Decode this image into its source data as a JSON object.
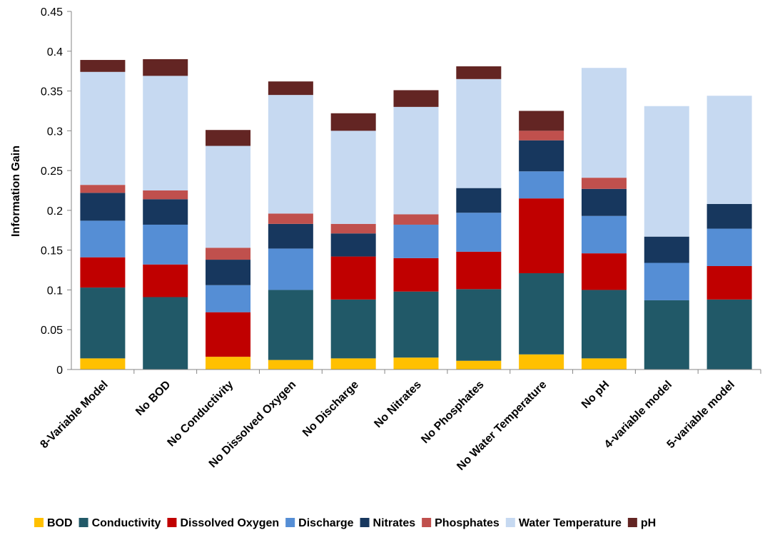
{
  "chart_data": {
    "type": "bar",
    "stacked": true,
    "ylabel": "Information Gain",
    "xlabel": "",
    "ylim": [
      0,
      0.45
    ],
    "yticks": [
      "0",
      "0.05",
      "0.1",
      "0.15",
      "0.2",
      "0.25",
      "0.3",
      "0.35",
      "0.4",
      "0.45"
    ],
    "grid": false,
    "legend_position": "bottom",
    "categories": [
      "8-Variable Model",
      "No BOD",
      "No Conductivity",
      "No Dissolved Oxygen",
      "No Discharge",
      "No Nitrates",
      "No Phosphates",
      "No Water Temperature",
      "No pH",
      "4-variable model",
      "5-variable model"
    ],
    "series": [
      {
        "name": "BOD",
        "color": "#FFC000",
        "values": [
          0.014,
          0,
          0.016,
          0.012,
          0.014,
          0.015,
          0.011,
          0.019,
          0.014,
          0,
          0
        ]
      },
      {
        "name": "Conductivity",
        "color": "#215968",
        "values": [
          0.089,
          0.091,
          0,
          0.088,
          0.074,
          0.083,
          0.09,
          0.102,
          0.086,
          0.087,
          0.088
        ]
      },
      {
        "name": "Dissolved Oxygen",
        "color": "#C00000",
        "values": [
          0.038,
          0.041,
          0.056,
          0,
          0.054,
          0.042,
          0.047,
          0.094,
          0.046,
          0,
          0.042
        ]
      },
      {
        "name": "Discharge",
        "color": "#558ED5",
        "values": [
          0.046,
          0.05,
          0.034,
          0.052,
          0,
          0.042,
          0.049,
          0.034,
          0.047,
          0.047,
          0.047
        ]
      },
      {
        "name": "Nitrates",
        "color": "#17375E",
        "values": [
          0.035,
          0.032,
          0.032,
          0.031,
          0.029,
          0,
          0.031,
          0.039,
          0.034,
          0.033,
          0.031
        ]
      },
      {
        "name": "Phosphates",
        "color": "#C0504D",
        "values": [
          0.01,
          0.011,
          0.015,
          0.013,
          0.012,
          0.013,
          0,
          0.012,
          0.014,
          0,
          0
        ]
      },
      {
        "name": "Water Temperature",
        "color": "#C6D9F1",
        "values": [
          0.142,
          0.144,
          0.128,
          0.149,
          0.117,
          0.135,
          0.137,
          0,
          0.138,
          0.164,
          0.136
        ]
      },
      {
        "name": "pH",
        "color": "#632523",
        "values": [
          0.015,
          0.021,
          0.02,
          0.017,
          0.022,
          0.021,
          0.016,
          0.025,
          0,
          0,
          0
        ]
      }
    ]
  }
}
